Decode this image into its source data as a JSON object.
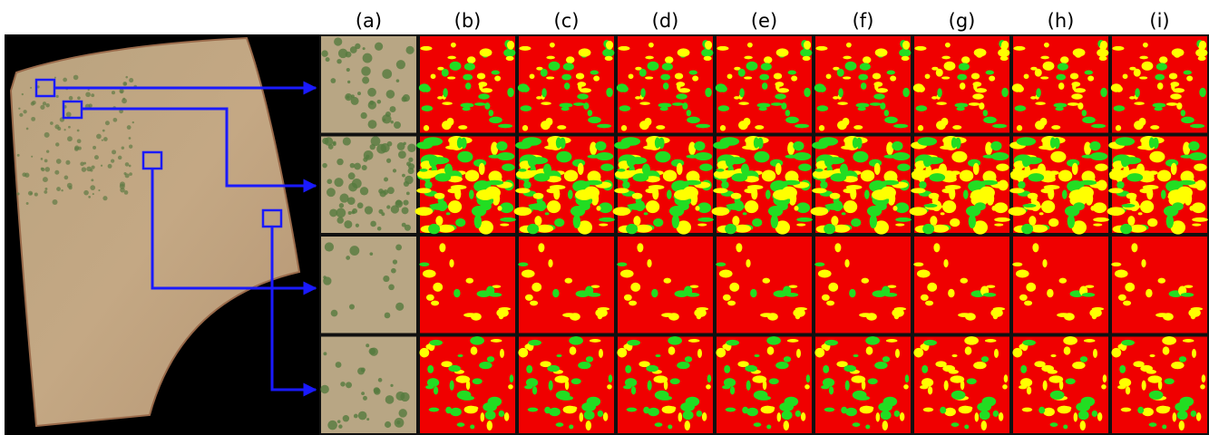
{
  "figure": {
    "column_labels": [
      "(a)",
      "(b)",
      "(c)",
      "(d)",
      "(e)",
      "(f)",
      "(g)",
      "(h)",
      "(i)"
    ]
  }
}
